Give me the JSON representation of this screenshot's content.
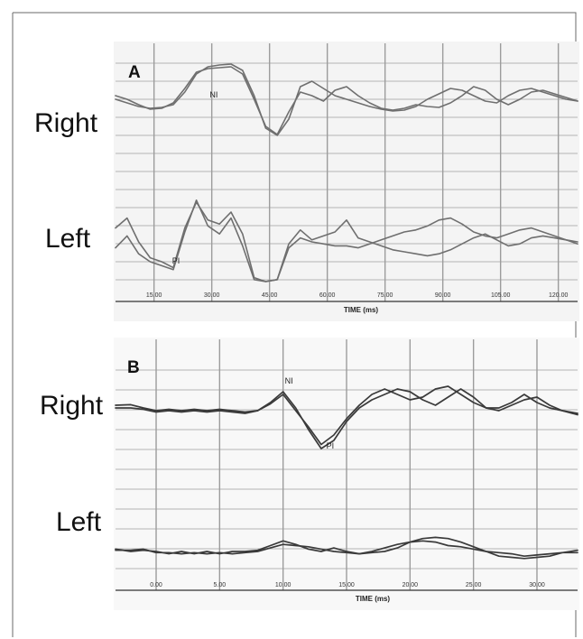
{
  "colors": {
    "traceA": "#6f6f6f",
    "traceB": "#3a3a3a",
    "grid": "#9c9c9c"
  },
  "chart_data": [
    {
      "type": "line",
      "panel": "A",
      "xlabel": "TIME (ms)",
      "tick_labels": [
        "15.00",
        "30.00",
        "45.00",
        "60.00",
        "75.00",
        "90.00",
        "105.00",
        "120.00"
      ],
      "xlim": [
        5,
        125
      ],
      "ylim": [
        -3,
        3
      ],
      "grid": true,
      "row_labels": [
        "Right",
        "Left"
      ],
      "annotations": [
        {
          "text": "NI",
          "x": 29,
          "y": 1.1
        },
        {
          "text": "PI",
          "x": 19,
          "y": -2.1
        }
      ],
      "series": [
        {
          "row": "Right",
          "x": [
            5,
            8,
            11,
            14,
            17,
            20,
            23,
            26,
            29,
            32,
            35,
            38,
            41,
            44,
            47,
            50,
            53,
            56,
            59,
            62,
            65,
            68,
            71,
            74,
            77,
            80,
            83,
            86,
            89,
            92,
            95,
            98,
            101,
            104,
            107,
            110,
            113,
            116,
            119,
            122,
            125
          ],
          "values": [
            1.0,
            0.8,
            0.6,
            0.5,
            0.55,
            0.7,
            1.4,
            2.4,
            2.8,
            2.9,
            2.95,
            2.6,
            1.2,
            -0.6,
            -1.0,
            -0.1,
            1.7,
            2.0,
            1.6,
            1.2,
            1.0,
            0.8,
            0.6,
            0.45,
            0.35,
            0.4,
            0.6,
            1.0,
            1.3,
            1.6,
            1.5,
            1.2,
            0.9,
            0.8,
            1.2,
            1.5,
            1.6,
            1.4,
            1.2,
            1.0,
            0.9
          ]
        },
        {
          "row": "Right",
          "x": [
            5,
            8,
            11,
            14,
            17,
            20,
            23,
            26,
            29,
            32,
            35,
            38,
            41,
            44,
            47,
            50,
            53,
            56,
            59,
            62,
            65,
            68,
            71,
            74,
            77,
            80,
            83,
            86,
            89,
            92,
            95,
            98,
            101,
            104,
            107,
            110,
            113,
            116,
            119,
            122,
            125
          ],
          "values": [
            1.2,
            1.0,
            0.7,
            0.45,
            0.5,
            0.8,
            1.6,
            2.5,
            2.7,
            2.75,
            2.8,
            2.4,
            1.0,
            -0.5,
            -0.95,
            0.3,
            1.4,
            1.2,
            0.9,
            1.5,
            1.7,
            1.2,
            0.8,
            0.5,
            0.4,
            0.5,
            0.7,
            0.6,
            0.55,
            0.8,
            1.2,
            1.7,
            1.5,
            1.0,
            0.7,
            1.0,
            1.4,
            1.5,
            1.3,
            1.1,
            0.9
          ]
        },
        {
          "row": "Left",
          "x": [
            5,
            8,
            11,
            14,
            17,
            20,
            23,
            26,
            29,
            32,
            35,
            38,
            41,
            44,
            47,
            50,
            53,
            56,
            59,
            62,
            65,
            68,
            71,
            74,
            77,
            80,
            83,
            86,
            89,
            92,
            95,
            98,
            101,
            104,
            107,
            110,
            113,
            116,
            119,
            122,
            125
          ],
          "values": [
            -1.3,
            -0.7,
            -1.6,
            -2.0,
            -2.2,
            -2.4,
            -0.5,
            1.1,
            -0.2,
            -0.6,
            0.2,
            -1.2,
            -2.9,
            -3.0,
            -2.9,
            -1.1,
            -0.4,
            -0.9,
            -0.7,
            -0.5,
            0.1,
            -0.8,
            -1.0,
            -1.2,
            -1.4,
            -1.5,
            -1.6,
            -1.7,
            -1.6,
            -1.4,
            -1.1,
            -0.8,
            -0.6,
            -0.9,
            -1.2,
            -1.1,
            -0.8,
            -0.7,
            -0.8,
            -0.9,
            -1.1
          ]
        },
        {
          "row": "Left",
          "x": [
            5,
            8,
            11,
            14,
            17,
            20,
            23,
            26,
            29,
            32,
            35,
            38,
            41,
            44,
            47,
            50,
            53,
            56,
            59,
            62,
            65,
            68,
            71,
            74,
            77,
            80,
            83,
            86,
            89,
            92,
            95,
            98,
            101,
            104,
            107,
            110,
            113,
            116,
            119,
            122,
            125
          ],
          "values": [
            -0.3,
            0.2,
            -1.0,
            -1.8,
            -2.0,
            -2.3,
            -0.3,
            1.0,
            0.1,
            -0.1,
            0.5,
            -0.6,
            -2.8,
            -3.0,
            -2.9,
            -1.3,
            -0.8,
            -1.0,
            -1.1,
            -1.2,
            -1.2,
            -1.3,
            -1.1,
            -0.9,
            -0.7,
            -0.5,
            -0.4,
            -0.2,
            0.1,
            0.2,
            -0.1,
            -0.5,
            -0.7,
            -0.8,
            -0.6,
            -0.4,
            -0.3,
            -0.5,
            -0.7,
            -0.9,
            -1.0
          ]
        }
      ]
    },
    {
      "type": "line",
      "panel": "B",
      "xlabel": "TIME (ms)",
      "tick_labels": [
        "0.00",
        "5.00",
        "10.00",
        "15.00",
        "20.00",
        "25.00",
        "30.00"
      ],
      "xlim": [
        -3.2,
        33.2
      ],
      "ylim": [
        -3,
        3
      ],
      "grid": true,
      "row_labels": [
        "Right",
        "Left"
      ],
      "annotations": [
        {
          "text": "NI",
          "x": 10,
          "y": 1.5
        },
        {
          "text": "PI",
          "x": 13.2,
          "y": -0.9
        }
      ],
      "series": [
        {
          "row": "Right",
          "x": [
            -3.2,
            -2,
            -1,
            0,
            1,
            2,
            3,
            4,
            5,
            6,
            7,
            8,
            9,
            10,
            11,
            12,
            13,
            14,
            15,
            16,
            17,
            18,
            19,
            20,
            21,
            22,
            23,
            24,
            25,
            26,
            27,
            28,
            29,
            30,
            31,
            32,
            33.2
          ],
          "values": [
            0.7,
            0.72,
            0.6,
            0.5,
            0.55,
            0.5,
            0.55,
            0.5,
            0.55,
            0.5,
            0.45,
            0.5,
            0.8,
            1.2,
            0.6,
            -0.2,
            -0.9,
            -0.6,
            0.1,
            0.6,
            0.9,
            1.1,
            1.3,
            1.2,
            0.9,
            0.7,
            1.0,
            1.3,
            1.0,
            0.6,
            0.5,
            0.7,
            0.9,
            1.0,
            0.7,
            0.5,
            0.35
          ]
        },
        {
          "row": "Right",
          "x": [
            -3.2,
            -2,
            -1,
            0,
            1,
            2,
            3,
            4,
            5,
            6,
            7,
            8,
            9,
            10,
            11,
            12,
            13,
            14,
            15,
            16,
            17,
            18,
            19,
            20,
            21,
            22,
            23,
            24,
            25,
            26,
            27,
            28,
            29,
            30,
            31,
            32,
            33.2
          ],
          "values": [
            0.6,
            0.6,
            0.55,
            0.45,
            0.5,
            0.45,
            0.5,
            0.45,
            0.5,
            0.45,
            0.4,
            0.5,
            0.75,
            1.1,
            0.5,
            -0.1,
            -0.75,
            -0.4,
            0.2,
            0.7,
            1.1,
            1.3,
            1.1,
            0.9,
            1.0,
            1.3,
            1.4,
            1.1,
            0.8,
            0.6,
            0.6,
            0.8,
            1.1,
            0.8,
            0.6,
            0.5,
            0.4
          ]
        },
        {
          "row": "Left",
          "x": [
            -3.2,
            -2,
            -1,
            0,
            1,
            2,
            3,
            4,
            5,
            6,
            7,
            8,
            9,
            10,
            11,
            12,
            13,
            14,
            15,
            16,
            17,
            18,
            19,
            20,
            21,
            22,
            23,
            24,
            25,
            26,
            27,
            28,
            29,
            30,
            31,
            32,
            33.2
          ],
          "values": [
            -0.9,
            -1.0,
            -0.95,
            -1.0,
            -1.1,
            -1.0,
            -1.1,
            -1.0,
            -1.1,
            -1.0,
            -1.0,
            -0.95,
            -0.75,
            -0.55,
            -0.7,
            -0.9,
            -1.0,
            -0.85,
            -1.0,
            -1.1,
            -1.05,
            -1.0,
            -0.85,
            -0.6,
            -0.55,
            -0.6,
            -0.75,
            -0.8,
            -0.9,
            -1.0,
            -1.05,
            -1.1,
            -1.2,
            -1.15,
            -1.1,
            -1.05,
            -1.05
          ]
        },
        {
          "row": "Left",
          "x": [
            -3.2,
            -2,
            -1,
            0,
            1,
            2,
            3,
            4,
            5,
            6,
            7,
            8,
            9,
            10,
            11,
            12,
            13,
            14,
            15,
            16,
            17,
            18,
            19,
            20,
            21,
            22,
            23,
            24,
            25,
            26,
            27,
            28,
            29,
            30,
            31,
            32,
            33.2
          ],
          "values": [
            -0.95,
            -0.95,
            -0.9,
            -1.05,
            -1.05,
            -1.1,
            -1.05,
            -1.1,
            -1.05,
            -1.1,
            -1.05,
            -1.0,
            -0.85,
            -0.7,
            -0.75,
            -0.8,
            -0.9,
            -1.0,
            -1.05,
            -1.1,
            -1.0,
            -0.85,
            -0.7,
            -0.6,
            -0.45,
            -0.4,
            -0.45,
            -0.6,
            -0.8,
            -1.0,
            -1.2,
            -1.25,
            -1.3,
            -1.25,
            -1.2,
            -1.05,
            -0.95
          ]
        }
      ]
    }
  ]
}
